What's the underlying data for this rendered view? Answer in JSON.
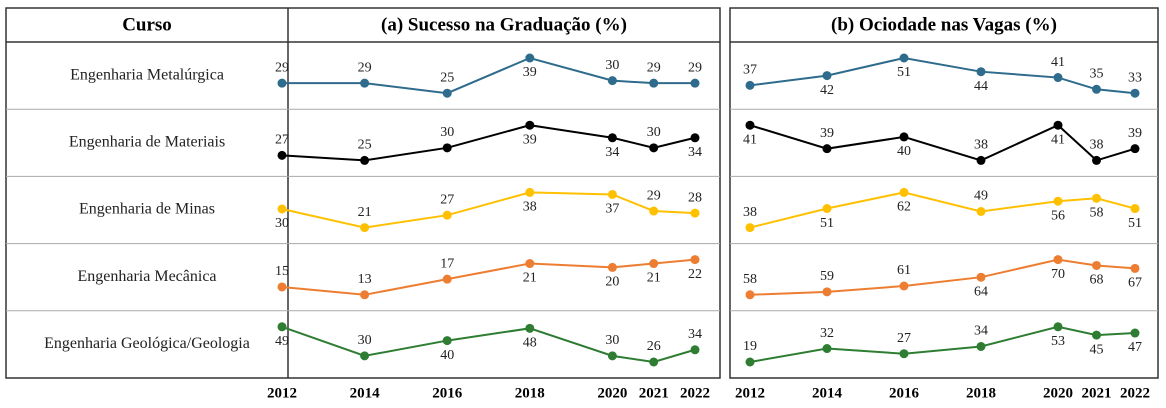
{
  "header": {
    "course_label": "Curso"
  },
  "courses": [
    "Engenharia Metalúrgica",
    "Engenharia de Materiais",
    "Engenharia de Minas",
    "Engenharia Mecânica",
    "Engenharia Geológica/Geologia"
  ],
  "years": [
    2012,
    2014,
    2016,
    2018,
    2020,
    2021,
    2022
  ],
  "colors": [
    "#2e6b8c",
    "#000000",
    "#ffc000",
    "#ed7d31",
    "#2e7d32"
  ],
  "panels": [
    {
      "title": "(a) Sucesso na Graduação (%)",
      "type": "line",
      "series": [
        {
          "name": "Engenharia Metalúrgica",
          "values": [
            29,
            29,
            25,
            39,
            30,
            29,
            29
          ]
        },
        {
          "name": "Engenharia de Materiais",
          "values": [
            27,
            25,
            30,
            39,
            34,
            30,
            34
          ]
        },
        {
          "name": "Engenharia de Minas",
          "values": [
            30,
            21,
            27,
            38,
            37,
            29,
            28
          ]
        },
        {
          "name": "Engenharia Mecânica",
          "values": [
            15,
            13,
            17,
            21,
            20,
            21,
            22
          ]
        },
        {
          "name": "Engenharia Geológica/Geologia",
          "values": [
            49,
            30,
            40,
            48,
            30,
            26,
            34
          ]
        }
      ]
    },
    {
      "title": "(b) Ociodade nas Vagas (%)",
      "type": "line",
      "series": [
        {
          "name": "Engenharia Metalúrgica",
          "values": [
            37,
            42,
            51,
            44,
            41,
            35,
            33
          ]
        },
        {
          "name": "Engenharia de Materiais",
          "values": [
            41,
            39,
            40,
            38,
            41,
            38,
            39
          ]
        },
        {
          "name": "Engenharia de Minas",
          "values": [
            38,
            51,
            62,
            49,
            56,
            58,
            51
          ]
        },
        {
          "name": "Engenharia Mecânica",
          "values": [
            58,
            59,
            61,
            64,
            70,
            68,
            67
          ]
        },
        {
          "name": "Engenharia Geológica/Geologia",
          "values": [
            19,
            32,
            27,
            34,
            53,
            45,
            47
          ]
        }
      ]
    }
  ]
}
